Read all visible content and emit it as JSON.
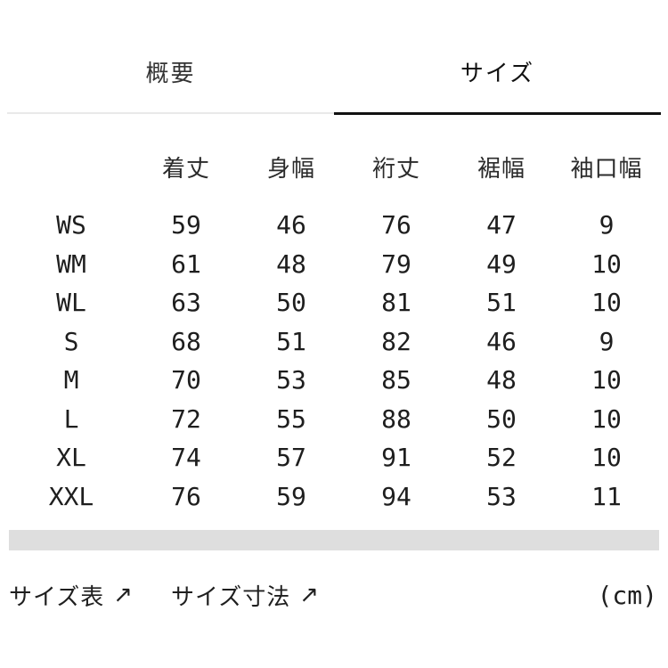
{
  "colors": {
    "active_underline": "#111111",
    "inactive_underline": "#e9e9e9",
    "divider_bar": "#dedede",
    "text": "#1f1f1f"
  },
  "tabs": [
    {
      "label": "概要",
      "active": false
    },
    {
      "label": "サイズ",
      "active": true
    }
  ],
  "size_table": {
    "columns": [
      "着丈",
      "身幅",
      "裄丈",
      "裾幅",
      "袖口幅"
    ],
    "rows": [
      {
        "size": "WS",
        "values": [
          "59",
          "46",
          "76",
          "47",
          "9"
        ]
      },
      {
        "size": "WM",
        "values": [
          "61",
          "48",
          "79",
          "49",
          "10"
        ]
      },
      {
        "size": "WL",
        "values": [
          "63",
          "50",
          "81",
          "51",
          "10"
        ]
      },
      {
        "size": "S",
        "values": [
          "68",
          "51",
          "82",
          "46",
          "9"
        ]
      },
      {
        "size": "M",
        "values": [
          "70",
          "53",
          "85",
          "48",
          "10"
        ]
      },
      {
        "size": "L",
        "values": [
          "72",
          "55",
          "88",
          "50",
          "10"
        ]
      },
      {
        "size": "XL",
        "values": [
          "74",
          "57",
          "91",
          "52",
          "10"
        ]
      },
      {
        "size": "XXL",
        "values": [
          "76",
          "59",
          "94",
          "53",
          "11"
        ]
      }
    ],
    "unit_label": "(cm)"
  },
  "footer": {
    "links": [
      {
        "label": "サイズ表"
      },
      {
        "label": "サイズ寸法"
      }
    ]
  },
  "icons": {
    "external_arrow": "↗"
  }
}
